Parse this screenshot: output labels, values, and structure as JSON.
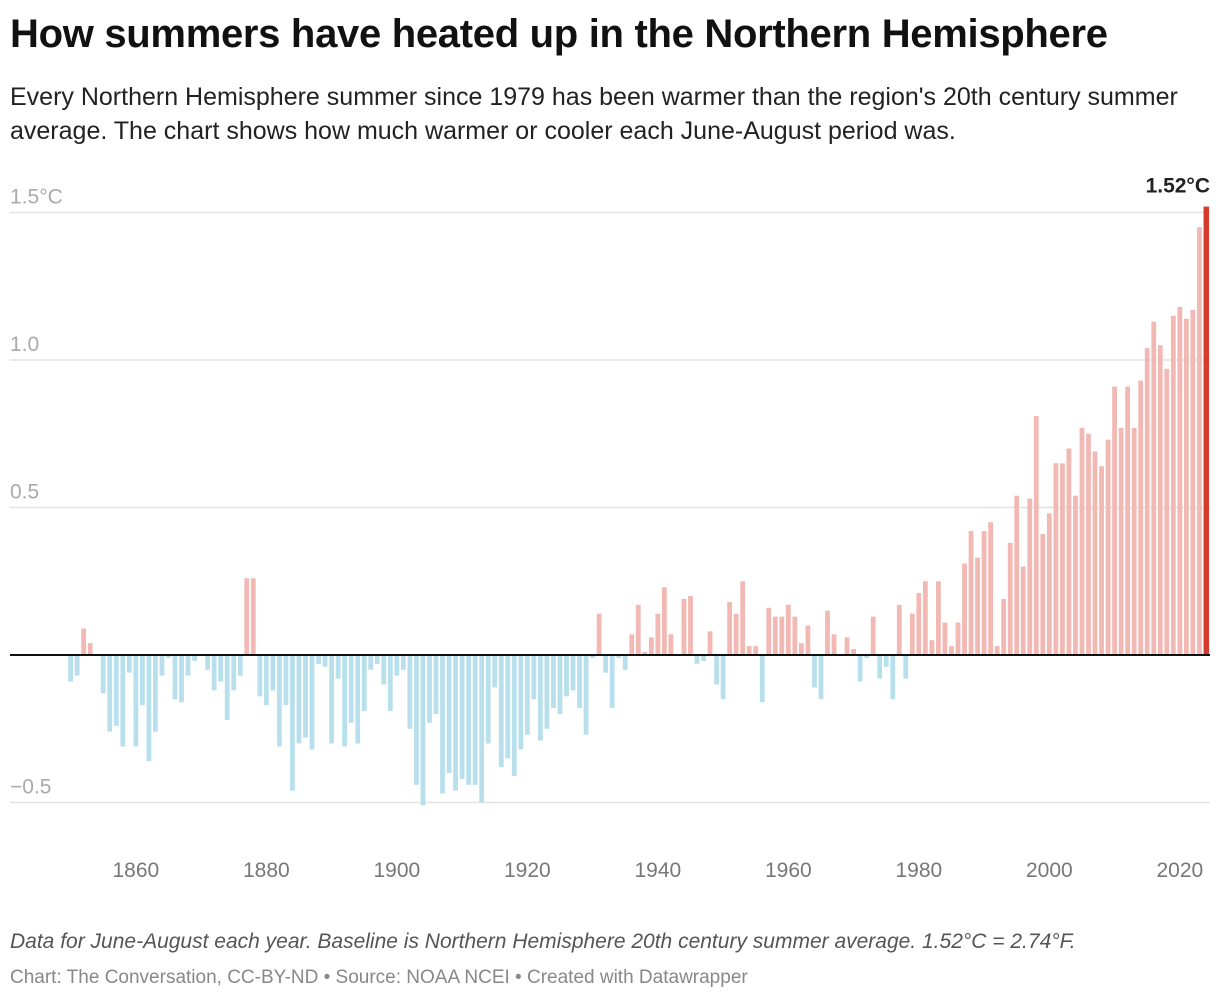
{
  "title": "How summers have heated up in the Northern Hemisphere",
  "subtitle": "Every Northern Hemisphere summer since 1979 has been warmer than the region's 20th century summer average. The chart shows how much warmer or cooler each June-August period was.",
  "notes": "Data for June-August each year. Baseline is Northern Hemisphere 20th century summer average. 1.52°C = 2.74°F.",
  "source": "Chart: The Conversation, CC-BY-ND • Source: NOAA NCEI • Created with Datawrapper",
  "colors": {
    "positive": "#f2b8b3",
    "negative": "#b8e0ec",
    "highlight": "#d63a2c",
    "zero_line": "#111111",
    "grid": "#e3e3e3"
  },
  "chart_data": {
    "type": "bar",
    "title": "",
    "xlabel": "",
    "ylabel": "",
    "ylim": [
      -0.6,
      1.55
    ],
    "grid": true,
    "y_ticks": [
      {
        "value": 1.5,
        "label": "1.5°C"
      },
      {
        "value": 1.0,
        "label": "1.0"
      },
      {
        "value": 0.5,
        "label": "0.5"
      },
      {
        "value": -0.5,
        "label": "−0.5"
      }
    ],
    "x_ticks": [
      {
        "value": 1860,
        "label": "1860"
      },
      {
        "value": 1880,
        "label": "1880"
      },
      {
        "value": 1900,
        "label": "1900"
      },
      {
        "value": 1920,
        "label": "1920"
      },
      {
        "value": 1940,
        "label": "1940"
      },
      {
        "value": 1960,
        "label": "1960"
      },
      {
        "value": 1980,
        "label": "1980"
      },
      {
        "value": 2000,
        "label": "2000"
      },
      {
        "value": 2020,
        "label": "2020"
      }
    ],
    "x_first": 1850,
    "x_last": 2024,
    "values": [
      -0.09,
      -0.07,
      0.09,
      0.04,
      0,
      -0.13,
      -0.26,
      -0.24,
      -0.31,
      -0.06,
      -0.31,
      -0.17,
      -0.36,
      -0.26,
      -0.07,
      -0.01,
      -0.15,
      -0.16,
      -0.07,
      -0.02,
      0,
      -0.05,
      -0.12,
      -0.09,
      -0.22,
      -0.12,
      -0.07,
      0.26,
      0.26,
      -0.14,
      -0.17,
      -0.12,
      -0.31,
      -0.17,
      -0.46,
      -0.3,
      -0.28,
      -0.32,
      -0.03,
      -0.04,
      -0.3,
      -0.08,
      -0.31,
      -0.23,
      -0.3,
      -0.19,
      -0.05,
      -0.03,
      -0.1,
      -0.19,
      -0.07,
      -0.05,
      -0.25,
      -0.44,
      -0.51,
      -0.23,
      -0.2,
      -0.47,
      -0.4,
      -0.46,
      -0.42,
      -0.44,
      -0.44,
      -0.5,
      -0.3,
      -0.11,
      -0.38,
      -0.35,
      -0.41,
      -0.32,
      -0.27,
      -0.15,
      -0.29,
      -0.25,
      -0.18,
      -0.2,
      -0.14,
      -0.12,
      -0.18,
      -0.27,
      -0.01,
      0.14,
      -0.06,
      -0.18,
      -0.01,
      -0.05,
      0.07,
      0.17,
      0.01,
      0.06,
      0.14,
      0.23,
      0.07,
      0,
      0.19,
      0.2,
      -0.03,
      -0.02,
      0.08,
      -0.1,
      -0.15,
      0.18,
      0.14,
      0.25,
      0.03,
      0.03,
      -0.16,
      0.16,
      0.13,
      0.13,
      0.17,
      0.13,
      0.04,
      0.1,
      -0.11,
      -0.15,
      0.15,
      0.07,
      0,
      0.06,
      0.02,
      -0.09,
      -0.01,
      0.13,
      -0.08,
      -0.04,
      -0.15,
      0.17,
      -0.08,
      0.14,
      0.21,
      0.25,
      0.05,
      0.25,
      0.11,
      0.03,
      0.11,
      0.31,
      0.42,
      0.33,
      0.42,
      0.45,
      0.03,
      0.19,
      0.38,
      0.54,
      0.3,
      0.53,
      0.81,
      0.41,
      0.48,
      0.65,
      0.65,
      0.7,
      0.54,
      0.77,
      0.75,
      0.69,
      0.64,
      0.73,
      0.91,
      0.77,
      0.91,
      0.77,
      0.93,
      1.04,
      1.13,
      1.05,
      0.97,
      1.15,
      1.18,
      1.14,
      1.17,
      1.45,
      1.52
    ],
    "annotations": [
      {
        "x": 2024,
        "value": 1.52,
        "label": "1.52°C"
      }
    ]
  }
}
